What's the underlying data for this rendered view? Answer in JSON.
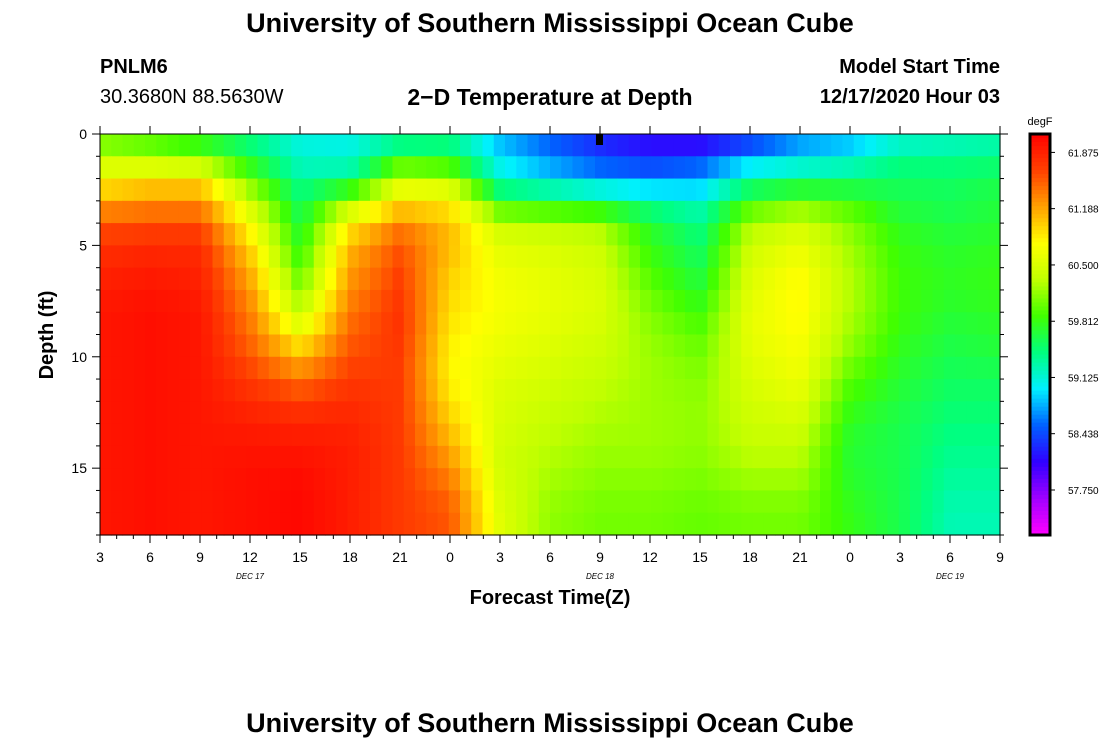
{
  "page": {
    "title_top": "University of Southern Mississippi Ocean Cube",
    "title_bottom": "University of Southern Mississippi Ocean Cube",
    "station_id": "PNLM6",
    "station_coords": "30.3680N 88.5630W",
    "plot_title": "2−D Temperature at Depth",
    "model_label": "Model Start Time",
    "model_time": "12/17/2020 Hour 03"
  },
  "chart_data": {
    "type": "heatmap",
    "title": "2−D Temperature at Depth",
    "xlabel": "Forecast Time(Z)",
    "ylabel": "Depth (ft)",
    "x_tick_labels": [
      "3",
      "6",
      "9",
      "12",
      "15",
      "18",
      "21",
      "0",
      "3",
      "6",
      "9",
      "12",
      "15",
      "18",
      "21",
      "0",
      "3",
      "6",
      "9"
    ],
    "date_labels": [
      {
        "label": "DEC 17",
        "hour_index": 3
      },
      {
        "label": "DEC 18",
        "hour_index": 10
      },
      {
        "label": "DEC 19",
        "hour_index": 17
      }
    ],
    "x_hours_range": [
      0,
      54
    ],
    "y_ticks": [
      0,
      5,
      10,
      15
    ],
    "ylim": [
      0,
      18
    ],
    "colorbar_units": "degF",
    "colorbar_ticks": [
      "61.875",
      "61.188",
      "60.500",
      "59.812",
      "59.125",
      "58.438",
      "57.750"
    ],
    "colorbar_tick_values": [
      61.875,
      61.188,
      60.5,
      59.812,
      59.125,
      58.438,
      57.75
    ],
    "vmin": 57.2,
    "vmax": 62.1,
    "colors": {
      "scale": [
        "#ff00ff",
        "#a000ff",
        "#3000ff",
        "#0060ff",
        "#00f0ff",
        "#00ff80",
        "#40ff00",
        "#c0ff00",
        "#ffff00",
        "#ffa000",
        "#ff4000",
        "#ff0000"
      ]
    },
    "depth_levels_ft": [
      0,
      1,
      2,
      3,
      4,
      5,
      6,
      7,
      8,
      9,
      10,
      11,
      12,
      13,
      14,
      15,
      16,
      17
    ],
    "time_columns_hours": [
      0,
      3,
      6,
      9,
      12,
      15,
      18,
      21,
      24,
      27,
      30,
      33,
      36,
      39,
      42,
      45,
      48,
      51,
      54
    ],
    "values_degF": [
      [
        59.95,
        59.85,
        59.65,
        59.35,
        59.1,
        59.05,
        59.2,
        59.35,
        58.8,
        58.5,
        58.2,
        58.0,
        57.9,
        58.2,
        58.6,
        58.7,
        59.05,
        59.15,
        59.2
      ],
      [
        60.3,
        60.15,
        60.0,
        59.6,
        59.1,
        59.1,
        59.65,
        59.55,
        58.9,
        58.6,
        58.4,
        58.3,
        58.4,
        58.7,
        58.9,
        59.05,
        59.35,
        59.35,
        59.4
      ],
      [
        60.75,
        60.9,
        60.9,
        60.0,
        59.35,
        59.4,
        60.4,
        60.3,
        59.2,
        58.95,
        58.7,
        58.6,
        58.7,
        59.3,
        59.4,
        59.45,
        59.55,
        59.55,
        59.6
      ],
      [
        61.15,
        61.25,
        61.25,
        60.4,
        59.5,
        60.2,
        60.85,
        60.8,
        59.7,
        59.6,
        59.5,
        59.3,
        59.15,
        59.8,
        60.0,
        59.85,
        59.6,
        59.55,
        59.65
      ],
      [
        61.55,
        61.6,
        61.6,
        60.7,
        59.65,
        60.8,
        61.35,
        61.05,
        60.4,
        60.3,
        60.2,
        59.7,
        59.4,
        60.25,
        60.45,
        60.1,
        59.75,
        59.65,
        59.7
      ],
      [
        61.75,
        61.8,
        61.8,
        60.95,
        59.75,
        61.1,
        61.55,
        61.1,
        60.55,
        60.5,
        60.4,
        59.8,
        59.5,
        60.4,
        60.6,
        60.2,
        59.8,
        59.7,
        59.75
      ],
      [
        61.85,
        61.9,
        61.85,
        61.1,
        59.9,
        61.2,
        61.65,
        61.0,
        60.65,
        60.55,
        60.45,
        59.9,
        59.6,
        60.5,
        60.75,
        60.25,
        59.85,
        59.75,
        59.8
      ],
      [
        61.9,
        61.95,
        61.9,
        61.25,
        60.1,
        61.3,
        61.7,
        60.95,
        60.7,
        60.6,
        60.5,
        60.0,
        59.7,
        60.55,
        60.8,
        60.3,
        59.85,
        59.75,
        59.8
      ],
      [
        61.95,
        62.0,
        61.95,
        61.35,
        60.35,
        61.4,
        61.75,
        60.9,
        60.7,
        60.6,
        60.5,
        60.1,
        59.85,
        60.6,
        60.8,
        60.25,
        59.85,
        59.7,
        59.75
      ],
      [
        61.95,
        62.0,
        61.95,
        61.45,
        60.7,
        61.5,
        61.75,
        60.85,
        60.65,
        60.55,
        60.45,
        60.15,
        59.95,
        60.6,
        60.75,
        60.2,
        59.8,
        59.65,
        59.7
      ],
      [
        61.95,
        62.0,
        61.95,
        61.55,
        61.1,
        61.6,
        61.7,
        60.8,
        60.6,
        60.5,
        60.4,
        60.2,
        60.05,
        60.55,
        60.7,
        60.1,
        59.75,
        59.6,
        59.65
      ],
      [
        61.95,
        62.0,
        61.95,
        61.7,
        61.4,
        61.7,
        61.7,
        60.8,
        60.55,
        60.45,
        60.35,
        60.2,
        60.1,
        60.5,
        60.65,
        59.95,
        59.7,
        59.55,
        59.55
      ],
      [
        61.95,
        62.0,
        61.95,
        61.8,
        61.7,
        61.8,
        61.7,
        60.9,
        60.5,
        60.4,
        60.3,
        60.2,
        60.15,
        60.45,
        60.55,
        59.85,
        59.65,
        59.5,
        59.5
      ],
      [
        61.95,
        62.0,
        61.95,
        61.9,
        61.85,
        61.85,
        61.7,
        61.0,
        60.5,
        60.35,
        60.25,
        60.2,
        60.15,
        60.4,
        60.45,
        59.75,
        59.6,
        59.45,
        59.45
      ],
      [
        61.95,
        62.0,
        61.95,
        61.95,
        61.95,
        61.9,
        61.7,
        61.15,
        60.45,
        60.3,
        60.2,
        60.2,
        60.15,
        60.35,
        60.35,
        59.7,
        59.6,
        59.4,
        59.4
      ],
      [
        61.95,
        62.0,
        61.95,
        62.0,
        62.0,
        61.9,
        61.7,
        61.3,
        60.45,
        60.25,
        60.15,
        60.15,
        60.1,
        60.25,
        60.25,
        59.7,
        59.6,
        59.35,
        59.35
      ],
      [
        61.95,
        62.0,
        61.95,
        62.0,
        62.05,
        61.9,
        61.7,
        61.45,
        60.5,
        60.2,
        60.1,
        60.1,
        60.05,
        60.15,
        60.15,
        59.75,
        59.6,
        59.3,
        59.3
      ],
      [
        61.95,
        62.0,
        61.95,
        62.0,
        62.05,
        61.9,
        61.7,
        61.55,
        60.55,
        60.15,
        60.05,
        60.05,
        60.0,
        60.05,
        60.05,
        59.8,
        59.6,
        59.25,
        59.25
      ]
    ],
    "marker": {
      "hour": 30,
      "depth_ft": 0.3
    }
  }
}
